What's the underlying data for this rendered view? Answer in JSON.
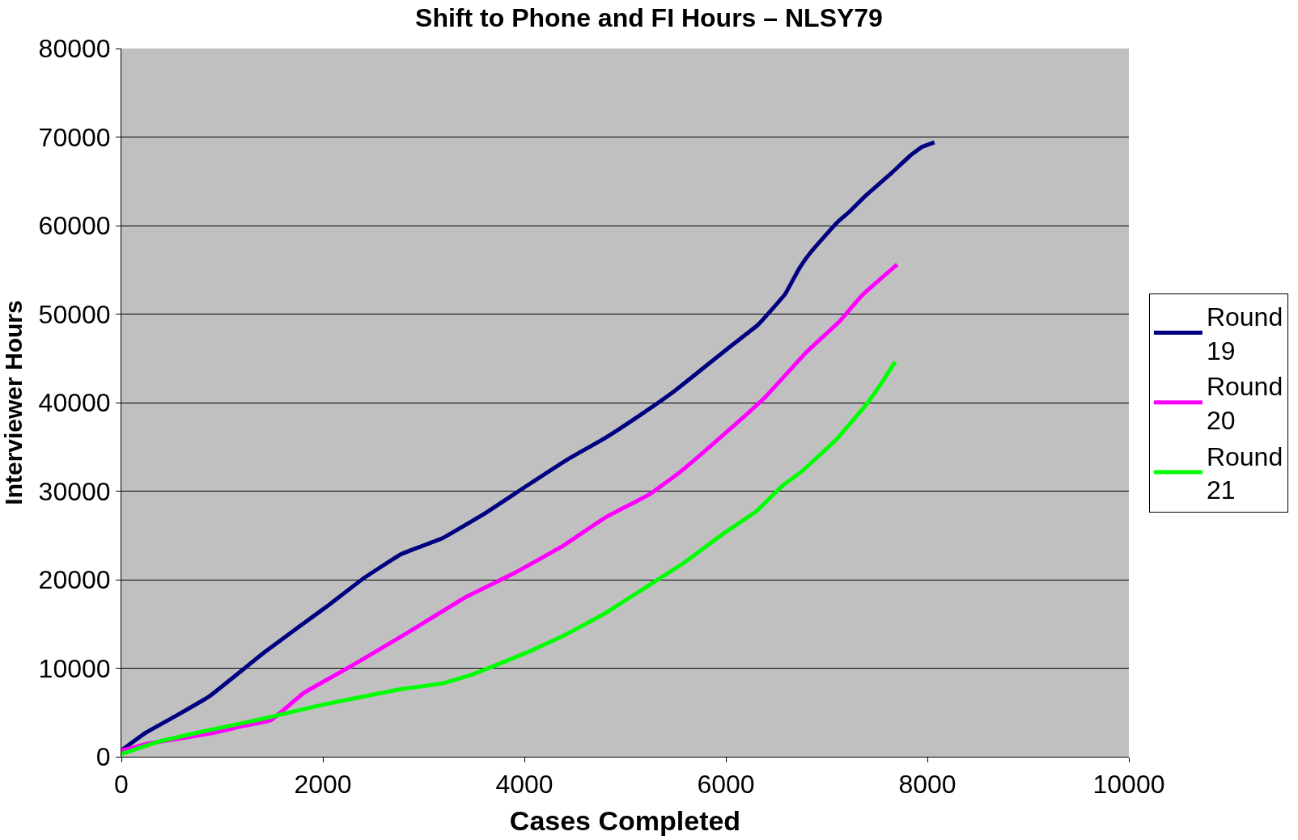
{
  "chart_data": {
    "type": "line",
    "title": "Shift to Phone and FI Hours – NLSY79",
    "xlabel": "Cases Completed",
    "ylabel": "Interviewer Hours",
    "xlim": [
      0,
      10000
    ],
    "xticks": [
      0,
      2000,
      4000,
      6000,
      8000,
      10000
    ],
    "ylim": [
      0,
      80000
    ],
    "yticks": [
      0,
      10000,
      20000,
      30000,
      40000,
      50000,
      60000,
      70000,
      80000
    ],
    "grid": "y",
    "legend": "right",
    "marker": "none",
    "line_style": "solid",
    "series": [
      {
        "name": "Round 19",
        "color": "#000080",
        "x": [
          0,
          240,
          570,
          870,
          1420,
          1765,
          2060,
          2410,
          2780,
          3190,
          3610,
          4010,
          4430,
          4800,
          5150,
          5500,
          6050,
          6320,
          6590,
          6730,
          6850,
          7100,
          7230,
          7380,
          7650,
          7830,
          7950,
          8070
        ],
        "values": [
          700,
          2700,
          4800,
          6800,
          11800,
          14700,
          17150,
          20200,
          22900,
          24700,
          27500,
          30500,
          33600,
          36000,
          38600,
          41400,
          46400,
          48800,
          52300,
          55200,
          57100,
          60300,
          61600,
          63300,
          66000,
          67900,
          68900,
          69400
        ]
      },
      {
        "name": "Round 20",
        "color": "#ff00ff",
        "x": [
          0,
          270,
          870,
          1220,
          1480,
          1810,
          2260,
          2810,
          3430,
          3910,
          4380,
          4800,
          5250,
          5550,
          6000,
          6380,
          6800,
          7130,
          7350,
          7700
        ],
        "values": [
          700,
          1500,
          2600,
          3500,
          4100,
          7200,
          10100,
          13800,
          18100,
          20800,
          23800,
          27000,
          29700,
          32200,
          36600,
          40500,
          45700,
          49200,
          52100,
          55600
        ]
      },
      {
        "name": "Round 21",
        "color": "#00ff00",
        "x": [
          0,
          370,
          870,
          1370,
          2010,
          2760,
          3190,
          3510,
          4010,
          4410,
          4800,
          5200,
          5570,
          6000,
          6300,
          6550,
          6750,
          7100,
          7380,
          7550,
          7680
        ],
        "values": [
          300,
          1700,
          3000,
          4200,
          5900,
          7600,
          8300,
          9400,
          11700,
          13800,
          16200,
          19100,
          21800,
          25400,
          27700,
          30500,
          32200,
          35900,
          39600,
          42300,
          44600
        ]
      }
    ]
  }
}
